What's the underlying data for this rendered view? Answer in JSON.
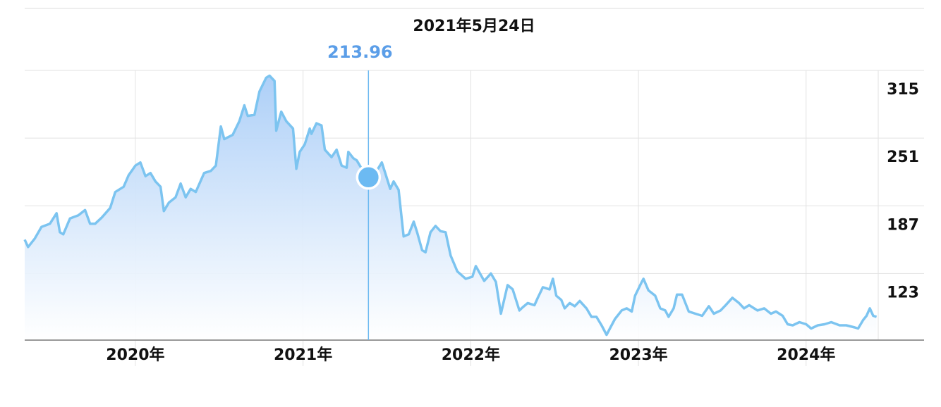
{
  "chart_data": {
    "type": "area",
    "title": "2021年5月24日",
    "annotation": {
      "x": 2021.39,
      "value": 213.96,
      "label": "213.96"
    },
    "x": [
      2019.34,
      2019.36,
      2019.4,
      2019.44,
      2019.49,
      2019.53,
      2019.55,
      2019.57,
      2019.61,
      2019.66,
      2019.7,
      2019.73,
      2019.76,
      2019.8,
      2019.85,
      2019.88,
      2019.93,
      2019.96,
      2020.0,
      2020.03,
      2020.06,
      2020.09,
      2020.12,
      2020.15,
      2020.17,
      2020.2,
      2020.24,
      2020.27,
      2020.3,
      2020.33,
      2020.36,
      2020.41,
      2020.45,
      2020.48,
      2020.51,
      2020.53,
      2020.58,
      2020.62,
      2020.65,
      2020.67,
      2020.71,
      2020.74,
      2020.78,
      2020.8,
      2020.83,
      2020.84,
      2020.87,
      2020.9,
      2020.94,
      2020.96,
      2020.98,
      2021.01,
      2021.04,
      2021.05,
      2021.08,
      2021.11,
      2021.13,
      2021.17,
      2021.2,
      2021.23,
      2021.26,
      2021.27,
      2021.3,
      2021.32,
      2021.35,
      2021.37,
      2021.39,
      2021.42,
      2021.47,
      2021.49,
      2021.52,
      2021.54,
      2021.57,
      2021.6,
      2021.63,
      2021.66,
      2021.68,
      2021.71,
      2021.73,
      2021.76,
      2021.79,
      2021.82,
      2021.85,
      2021.88,
      2021.92,
      2021.97,
      2022.01,
      2022.03,
      2022.08,
      2022.12,
      2022.15,
      2022.18,
      2022.22,
      2022.25,
      2022.29,
      2022.31,
      2022.34,
      2022.38,
      2022.4,
      2022.43,
      2022.47,
      2022.49,
      2022.51,
      2022.54,
      2022.56,
      2022.59,
      2022.62,
      2022.65,
      2022.69,
      2022.72,
      2022.75,
      2022.78,
      2022.81,
      2022.84,
      2022.86,
      2022.9,
      2022.93,
      2022.96,
      2022.98,
      2023.02,
      2023.03,
      2023.06,
      2023.1,
      2023.13,
      2023.16,
      2023.18,
      2023.21,
      2023.23,
      2023.26,
      2023.3,
      2023.34,
      2023.38,
      2023.42,
      2023.45,
      2023.49,
      2023.52,
      2023.56,
      2023.6,
      2023.63,
      2023.66,
      2023.71,
      2023.75,
      2023.79,
      2023.82,
      2023.86,
      2023.89,
      2023.92,
      2023.96,
      2024.0,
      2024.03,
      2024.07,
      2024.11,
      2024.15,
      2024.2,
      2024.24,
      2024.29,
      2024.31,
      2024.34,
      2024.36,
      2024.38,
      2024.4,
      2024.42
    ],
    "series": [
      {
        "color": "#7cc4f0",
        "values": [
          155,
          148,
          156,
          167,
          170,
          180,
          162,
          160,
          175,
          178,
          183,
          170,
          170,
          176,
          185,
          200,
          205,
          216,
          225,
          228,
          215,
          218,
          210,
          205,
          182,
          190,
          195,
          208,
          195,
          203,
          200,
          218,
          220,
          225,
          262,
          250,
          254,
          267,
          282,
          272,
          273,
          295,
          308,
          310,
          305,
          258,
          276,
          267,
          260,
          222,
          238,
          245,
          260,
          255,
          265,
          263,
          240,
          233,
          240,
          225,
          223,
          238,
          232,
          230,
          222,
          218,
          213.96,
          215,
          228,
          218,
          203,
          210,
          202,
          158,
          160,
          172,
          162,
          145,
          143,
          162,
          168,
          163,
          162,
          140,
          125,
          118,
          120,
          130,
          116,
          123,
          115,
          85,
          112,
          108,
          88,
          91,
          95,
          93,
          100,
          110,
          108,
          118,
          102,
          98,
          90,
          95,
          92,
          97,
          90,
          82,
          82,
          74,
          65,
          74,
          80,
          88,
          90,
          87,
          102,
          115,
          118,
          107,
          102,
          90,
          88,
          82,
          90,
          103,
          103,
          87,
          85,
          83,
          92,
          85,
          88,
          93,
          100,
          95,
          90,
          93,
          88,
          90,
          85,
          87,
          83,
          75,
          74,
          77,
          75,
          71,
          74,
          75,
          77,
          74,
          74,
          72,
          71,
          79,
          83,
          90,
          83,
          82
        ]
      }
    ],
    "xlim": [
      2019.34,
      2024.43
    ],
    "ylim": [
      60,
      315
    ],
    "yticks": [
      123,
      187,
      251,
      315
    ],
    "xticks": [
      {
        "value": 2020,
        "label": "2020年"
      },
      {
        "value": 2021,
        "label": "2021年"
      },
      {
        "value": 2022,
        "label": "2022年"
      },
      {
        "value": 2023,
        "label": "2023年"
      },
      {
        "value": 2024,
        "label": "2024年"
      }
    ],
    "grid": true
  }
}
